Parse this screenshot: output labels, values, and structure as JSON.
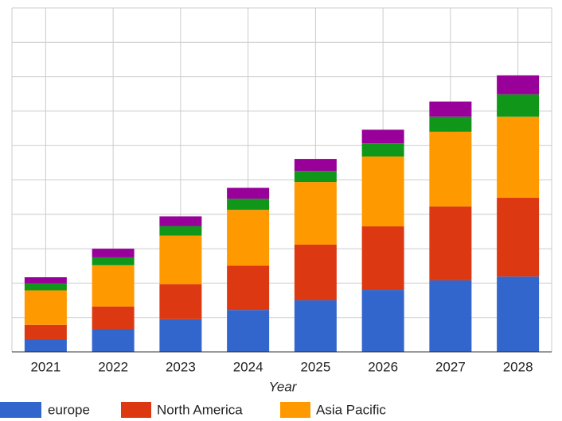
{
  "chart_data": {
    "type": "stacked_bar",
    "x_label": "Year",
    "categories": [
      "2021",
      "2022",
      "2023",
      "2024",
      "2025",
      "2026",
      "2027",
      "2028"
    ],
    "series": [
      {
        "name": "europe",
        "color": "#3366cc",
        "values": [
          3.7,
          6.7,
          9.5,
          12.2,
          15,
          18,
          20.8,
          21.9
        ]
      },
      {
        "name": "North America",
        "color": "#dc3912",
        "values": [
          4.2,
          6.5,
          10.2,
          12.9,
          16.2,
          18.5,
          21.5,
          22.9
        ]
      },
      {
        "name": "Asia Pacific",
        "color": "#ff9900",
        "values": [
          10,
          12,
          14.1,
          16.2,
          18.2,
          20.3,
          21.7,
          23.6
        ]
      },
      {
        "color": "#109618",
        "values": [
          2,
          2.3,
          2.8,
          3.2,
          3.2,
          3.9,
          4.4,
          6.5
        ]
      },
      {
        "color": "#990099",
        "values": [
          1.8,
          2.5,
          2.8,
          3.2,
          3.5,
          3.9,
          4.4,
          5.5
        ]
      }
    ],
    "ylim": [
      0,
      100
    ],
    "yticks": [
      0,
      10,
      20,
      30,
      40,
      50,
      60,
      70,
      80,
      90,
      100
    ],
    "grid": true
  }
}
